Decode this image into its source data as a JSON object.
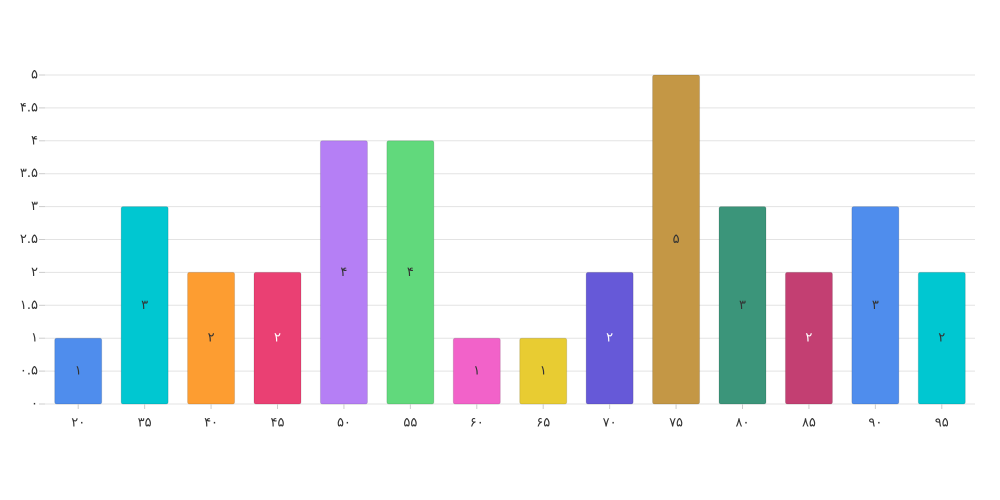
{
  "chart_data": {
    "type": "bar",
    "title": "",
    "xlabel": "",
    "ylabel": "",
    "categories": [
      "۲۰",
      "۳۵",
      "۴۰",
      "۴۵",
      "۵۰",
      "۵۵",
      "۶۰",
      "۶۵",
      "۷۰",
      "۷۵",
      "۸۰",
      "۸۵",
      "۹۰",
      "۹۵"
    ],
    "values": [
      1,
      3,
      2,
      2,
      4,
      4,
      1,
      1,
      2,
      5,
      3,
      2,
      3,
      2
    ],
    "value_labels": [
      "۱",
      "۳",
      "۲",
      "۲",
      "۴",
      "۴",
      "۱",
      "۱",
      "۲",
      "۵",
      "۳",
      "۲",
      "۳",
      "۲"
    ],
    "colors": [
      "#4f8ded",
      "#00c7d1",
      "#fd9d31",
      "#ea4073",
      "#b57ff5",
      "#61d97c",
      "#f262c9",
      "#e8cc32",
      "#6659d8",
      "#c49745",
      "#3b957a",
      "#c33f72",
      "#4f8ded",
      "#00c7d1"
    ],
    "light_label_colors": [
      "#6659d8",
      "#ea4073",
      "#c33f72"
    ],
    "ylim": [
      0,
      5
    ],
    "yticks": [
      0,
      0.5,
      1,
      1.5,
      2,
      2.5,
      3,
      3.5,
      4,
      4.5,
      5
    ],
    "ytick_labels": [
      "۰",
      "۰.۵",
      "۱",
      "۱.۵",
      "۲",
      "۲.۵",
      "۳",
      "۳.۵",
      "۴",
      "۴.۵",
      "۵"
    ],
    "grid": true,
    "legend": "none"
  }
}
